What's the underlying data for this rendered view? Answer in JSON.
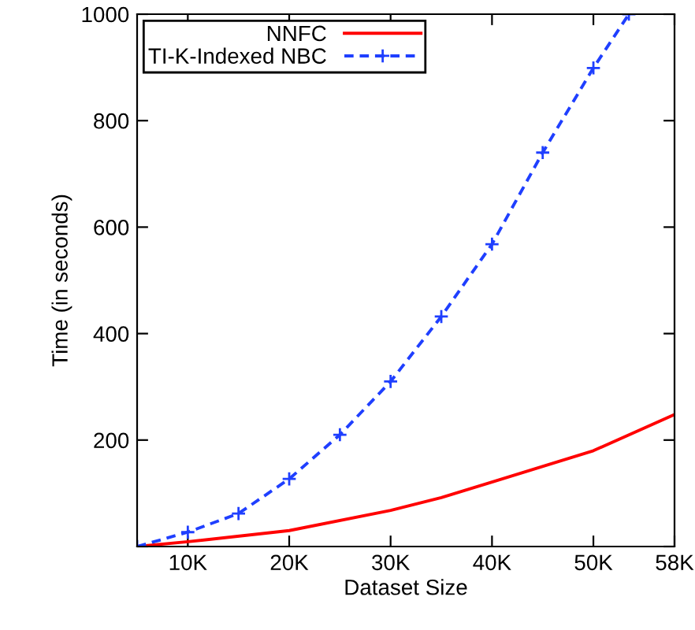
{
  "chart_data": {
    "type": "line",
    "xlabel": "Dataset Size",
    "ylabel": "Time (in seconds)",
    "xlim": [
      5,
      58
    ],
    "ylim": [
      0,
      1000
    ],
    "xticks": [
      {
        "value": 10,
        "label": "10K"
      },
      {
        "value": 20,
        "label": "20K"
      },
      {
        "value": 30,
        "label": "30K"
      },
      {
        "value": 40,
        "label": "40K"
      },
      {
        "value": 50,
        "label": "50K"
      },
      {
        "value": 58,
        "label": "58K"
      }
    ],
    "yticks": [
      {
        "value": 0,
        "label": null
      },
      200,
      400,
      600,
      800,
      1000
    ],
    "grid": false,
    "legend": "top left",
    "series": [
      {
        "name": "NNFC",
        "color": "#ff0000",
        "marker": "none",
        "line_style": "solid",
        "x": [
          5,
          10,
          20,
          30,
          35,
          40,
          50,
          58
        ],
        "values": [
          0,
          9,
          30,
          68,
          92,
          121,
          180,
          248
        ]
      },
      {
        "name": "TI-K-Indexed NBC",
        "color": "#1f3fff",
        "marker": "cross",
        "line_style": "dashed",
        "x": [
          5,
          10,
          15,
          20,
          25,
          30,
          35,
          40,
          45,
          50,
          53.5
        ],
        "values": [
          0,
          27,
          62,
          127,
          210,
          310,
          432,
          568,
          740,
          899,
          1000
        ]
      }
    ]
  }
}
